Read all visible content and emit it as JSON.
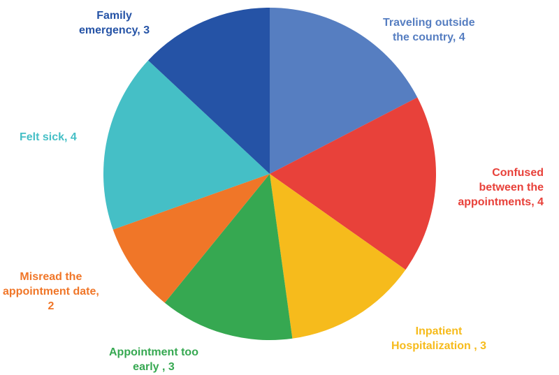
{
  "chart_data": {
    "type": "pie",
    "start_angle_deg": 0,
    "direction": "clockwise",
    "slices": [
      {
        "label_lines": [
          "Traveling outside",
          "the country, 4"
        ],
        "value": 4,
        "color": "#567ec1"
      },
      {
        "label_lines": [
          "Confused",
          "between the",
          "appointments, 4"
        ],
        "value": 4,
        "color": "#e8413a"
      },
      {
        "label_lines": [
          "Inpatient",
          "Hospitalization , 3"
        ],
        "value": 3,
        "color": "#f6bb1c"
      },
      {
        "label_lines": [
          "Appointment too",
          "early , 3"
        ],
        "value": 3,
        "color": "#36a851"
      },
      {
        "label_lines": [
          "Misread the",
          "appointment date,",
          "2"
        ],
        "value": 2,
        "color": "#f07628"
      },
      {
        "label_lines": [
          "Felt sick, 4"
        ],
        "value": 4,
        "color": "#45bfc6"
      },
      {
        "label_lines": [
          "Family",
          "emergency, 3"
        ],
        "value": 3,
        "color": "#2553a6"
      }
    ]
  }
}
